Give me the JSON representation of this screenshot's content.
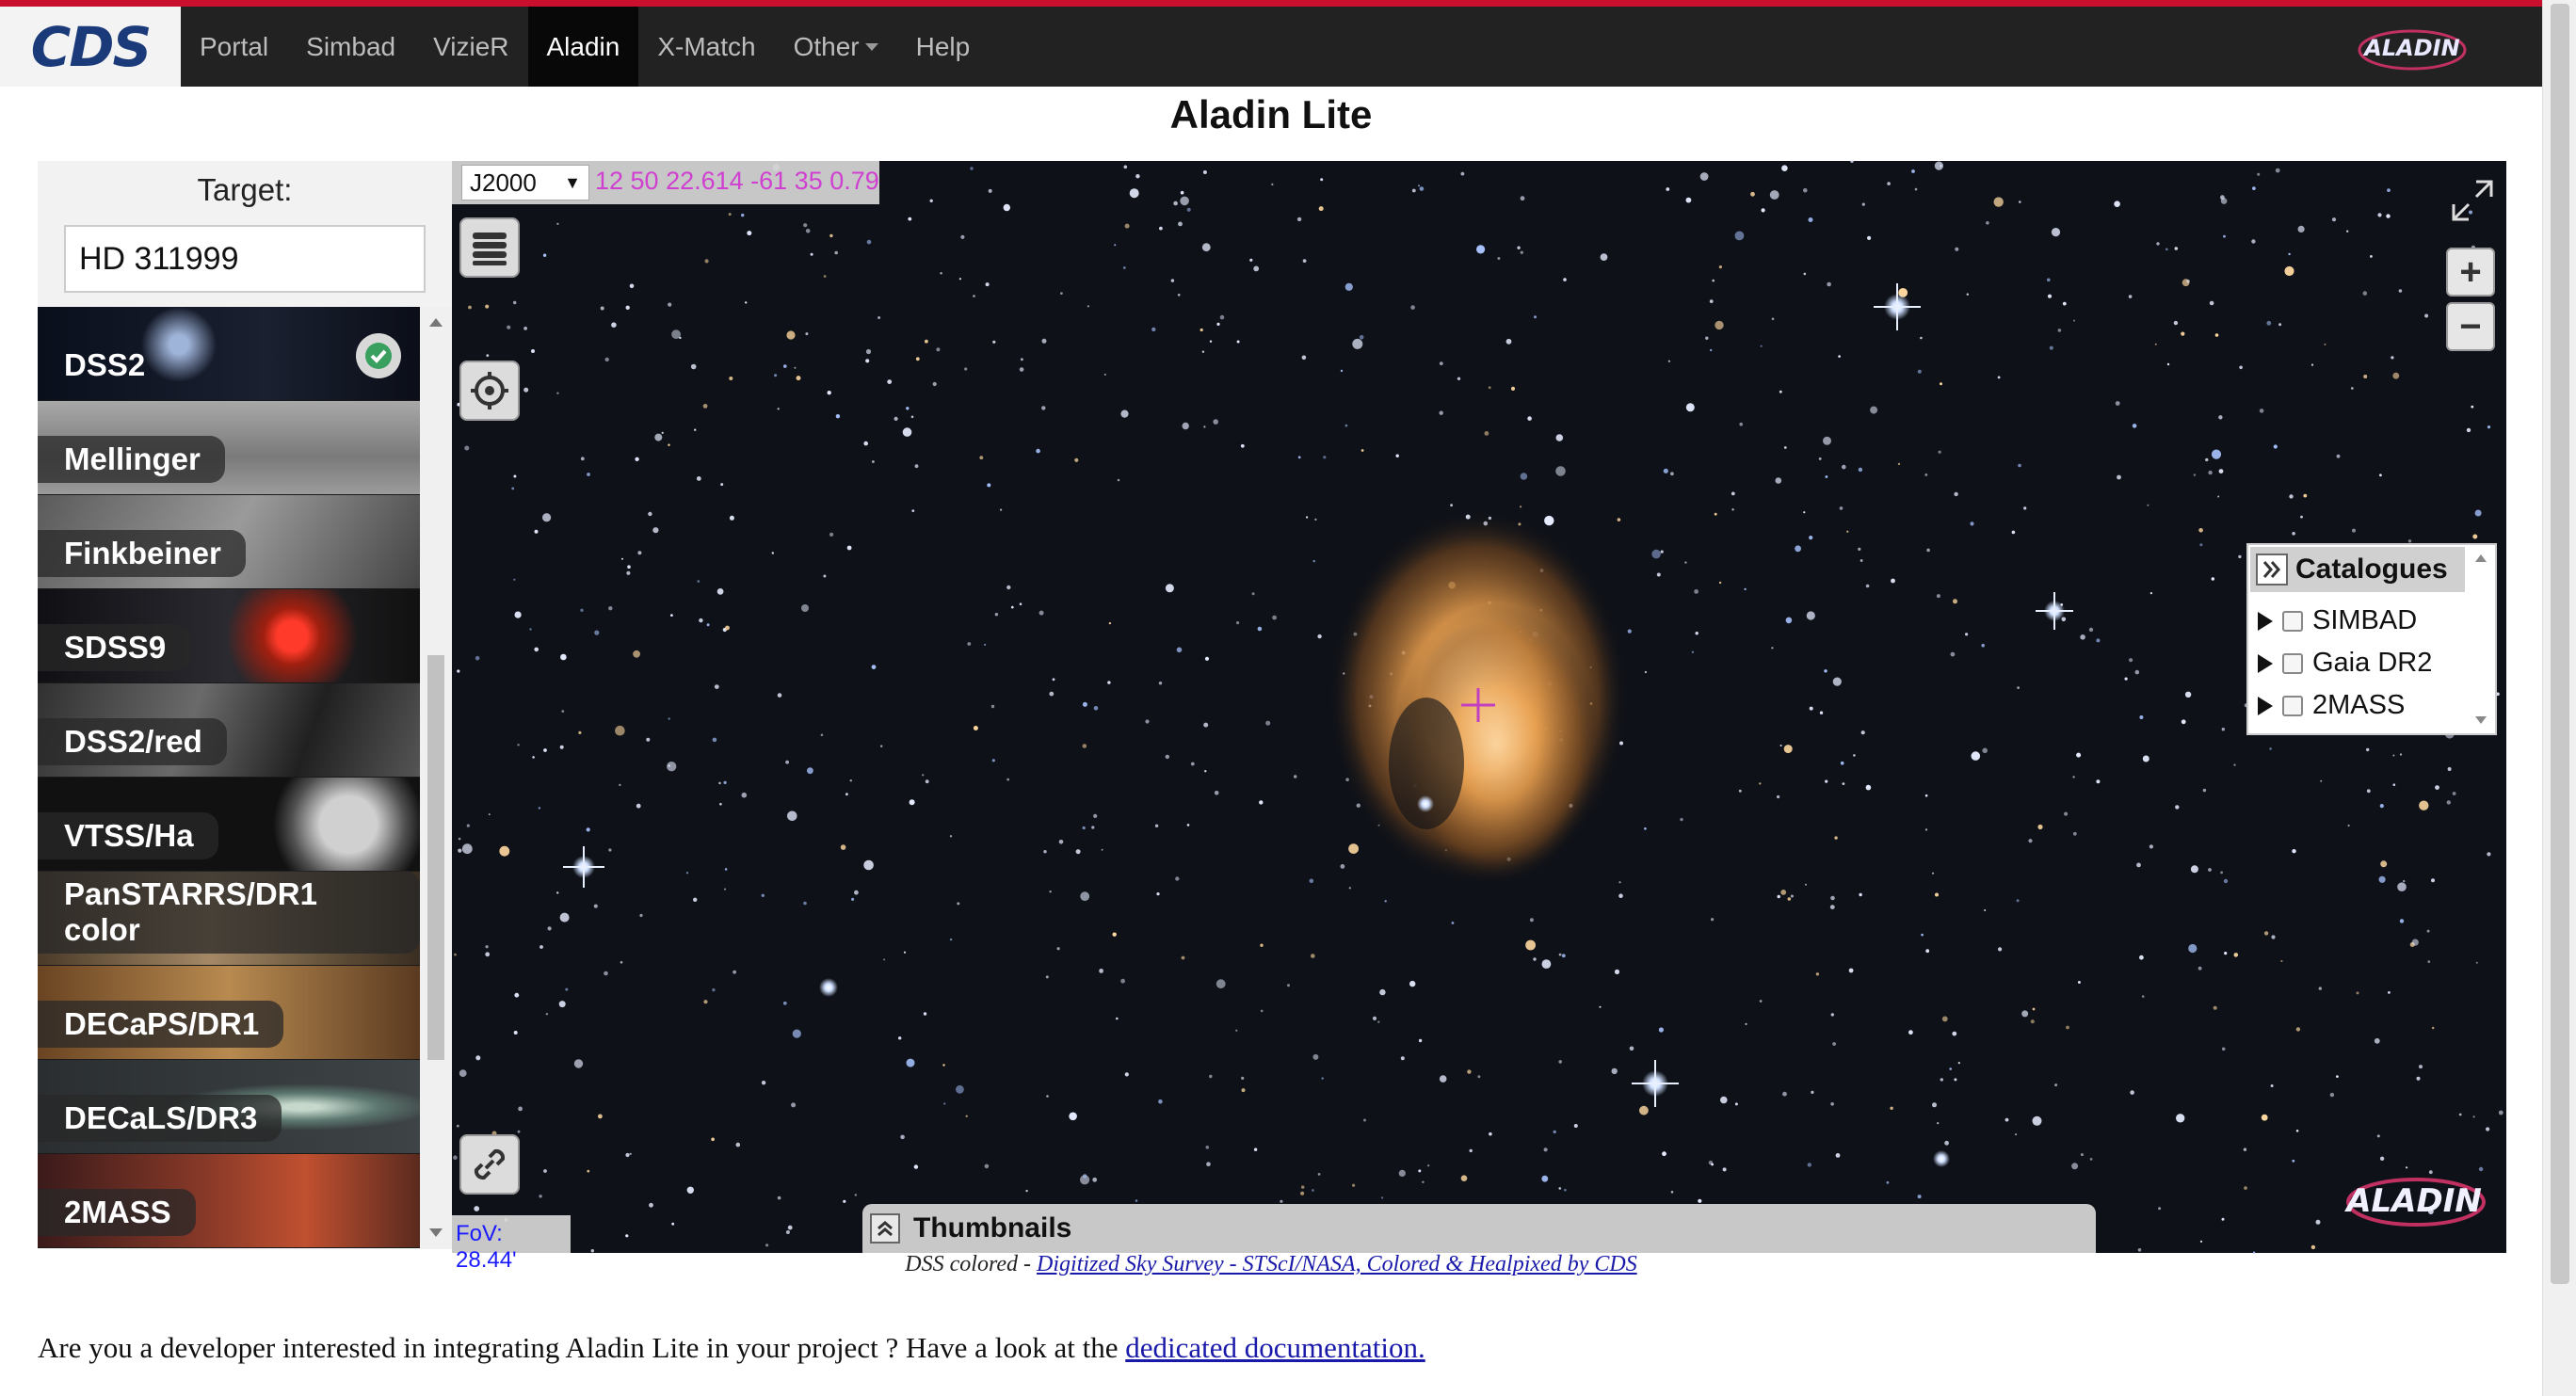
{
  "navbar": {
    "logo": "CDS",
    "items": [
      {
        "label": "Portal",
        "active": false
      },
      {
        "label": "Simbad",
        "active": false
      },
      {
        "label": "VizieR",
        "active": false
      },
      {
        "label": "Aladin",
        "active": true
      },
      {
        "label": "X-Match",
        "active": false
      },
      {
        "label": "Other",
        "active": false,
        "dropdown": true
      },
      {
        "label": "Help",
        "active": false
      }
    ],
    "right_logo": "ALADIN"
  },
  "page_title": "Aladin Lite",
  "left_panel": {
    "target_label": "Target:",
    "target_value": "HD 311999",
    "surveys": [
      {
        "label": "DSS2",
        "selected": true
      },
      {
        "label": "Mellinger",
        "selected": false
      },
      {
        "label": "Finkbeiner",
        "selected": false
      },
      {
        "label": "SDSS9",
        "selected": false
      },
      {
        "label": "DSS2/red",
        "selected": false
      },
      {
        "label": "VTSS/Ha",
        "selected": false
      },
      {
        "label": "PanSTARRS/DR1 color",
        "selected": false
      },
      {
        "label": "DECaPS/DR1",
        "selected": false
      },
      {
        "label": "DECaLS/DR3",
        "selected": false
      },
      {
        "label": "2MASS",
        "selected": false
      }
    ]
  },
  "sky_view": {
    "frame": "J2000",
    "coordinates": "12 50 22.614 -61 35 0.79",
    "fov": "FoV: 28.44'",
    "thumbnails_label": "Thumbnails",
    "logo": "ALADIN",
    "catalogues": {
      "title": "Catalogues",
      "items": [
        "SIMBAD",
        "Gaia DR2",
        "2MASS"
      ]
    }
  },
  "credit": {
    "prefix": "DSS colored - ",
    "link": "Digitized Sky Survey - STScI/NASA, Colored & Healpixed by CDS"
  },
  "developer": {
    "text": "Are you a developer interested in integrating Aladin Lite in your project ? Have a look at the ",
    "link": "dedicated documentation."
  },
  "colors": {
    "accent_red": "#c8102e",
    "navbar_bg": "#222222",
    "coord_text": "#d040d0",
    "fov_text": "#1a1aff",
    "nebula": "#e8a050"
  }
}
